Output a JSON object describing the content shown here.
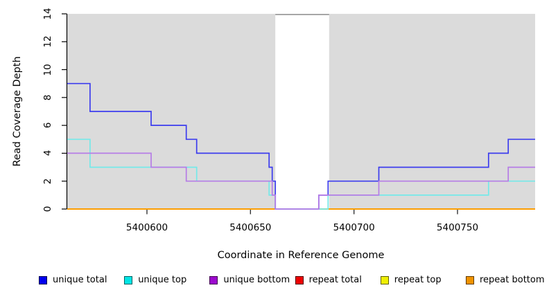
{
  "figure": {
    "background": "#ffffff",
    "plot_background": "#dbdbdb"
  },
  "chart_data": {
    "type": "line",
    "step": "post",
    "title": "",
    "xlabel": "Coordinate in Reference Genome",
    "ylabel": "Read Coverage Depth",
    "xlim": [
      5400561.5,
      5400787.5
    ],
    "ylim": [
      0,
      14
    ],
    "x_ticks": [
      5400600,
      5400650,
      5400700,
      5400750
    ],
    "y_ticks": [
      0,
      2,
      4,
      6,
      8,
      10,
      12,
      14
    ],
    "grid": false,
    "legend_position": "bottom",
    "plot_bg": "#dbdbdb",
    "highlight_region": {
      "x0": 5400662,
      "x1": 5400688,
      "fill": "#ffffff",
      "top_border_color": "#8f8f8f"
    },
    "draw_order": [
      3,
      4,
      5,
      0,
      1,
      2
    ],
    "series": [
      {
        "name": "unique total",
        "line_color": "#3c3cee",
        "legend_color": "#0000ee",
        "legend_border": "#00004d",
        "points": [
          [
            5400561.5,
            9
          ],
          [
            5400572.5,
            7
          ],
          [
            5400602,
            6
          ],
          [
            5400619,
            5
          ],
          [
            5400624,
            4
          ],
          [
            5400659,
            3
          ],
          [
            5400660.5,
            2
          ],
          [
            5400662,
            0
          ],
          [
            5400683,
            1
          ],
          [
            5400687.5,
            2
          ],
          [
            5400712,
            3
          ],
          [
            5400765,
            4
          ],
          [
            5400774.5,
            5
          ]
        ]
      },
      {
        "name": "unique top",
        "line_color": "#74e9e9",
        "legend_color": "#00e5e5",
        "legend_border": "#005f5f",
        "points": [
          [
            5400561.5,
            5
          ],
          [
            5400572.5,
            3
          ],
          [
            5400624,
            2
          ],
          [
            5400659,
            1
          ],
          [
            5400662,
            0
          ],
          [
            5400687.5,
            1
          ],
          [
            5400765,
            2
          ]
        ]
      },
      {
        "name": "unique bottom",
        "line_color": "#b67ce6",
        "legend_color": "#9c08ce",
        "legend_border": "#40004d",
        "points": [
          [
            5400561.5,
            4
          ],
          [
            5400602,
            3
          ],
          [
            5400619,
            2
          ],
          [
            5400660.5,
            1
          ],
          [
            5400662,
            0
          ],
          [
            5400683,
            1
          ],
          [
            5400712,
            2
          ],
          [
            5400774.5,
            3
          ]
        ]
      },
      {
        "name": "repeat total",
        "line_color": "#e02020",
        "legend_color": "#ee0000",
        "legend_border": "#4d0000",
        "points": [
          [
            5400561.5,
            0
          ]
        ]
      },
      {
        "name": "repeat top",
        "line_color": "#efef00",
        "legend_color": "#efef00",
        "legend_border": "#5f5f00",
        "points": [
          [
            5400561.5,
            0
          ]
        ]
      },
      {
        "name": "repeat bottom",
        "line_color": "#ff9800",
        "legend_color": "#ef9300",
        "legend_border": "#5f3a00",
        "points": [
          [
            5400561.5,
            0
          ]
        ]
      }
    ]
  }
}
